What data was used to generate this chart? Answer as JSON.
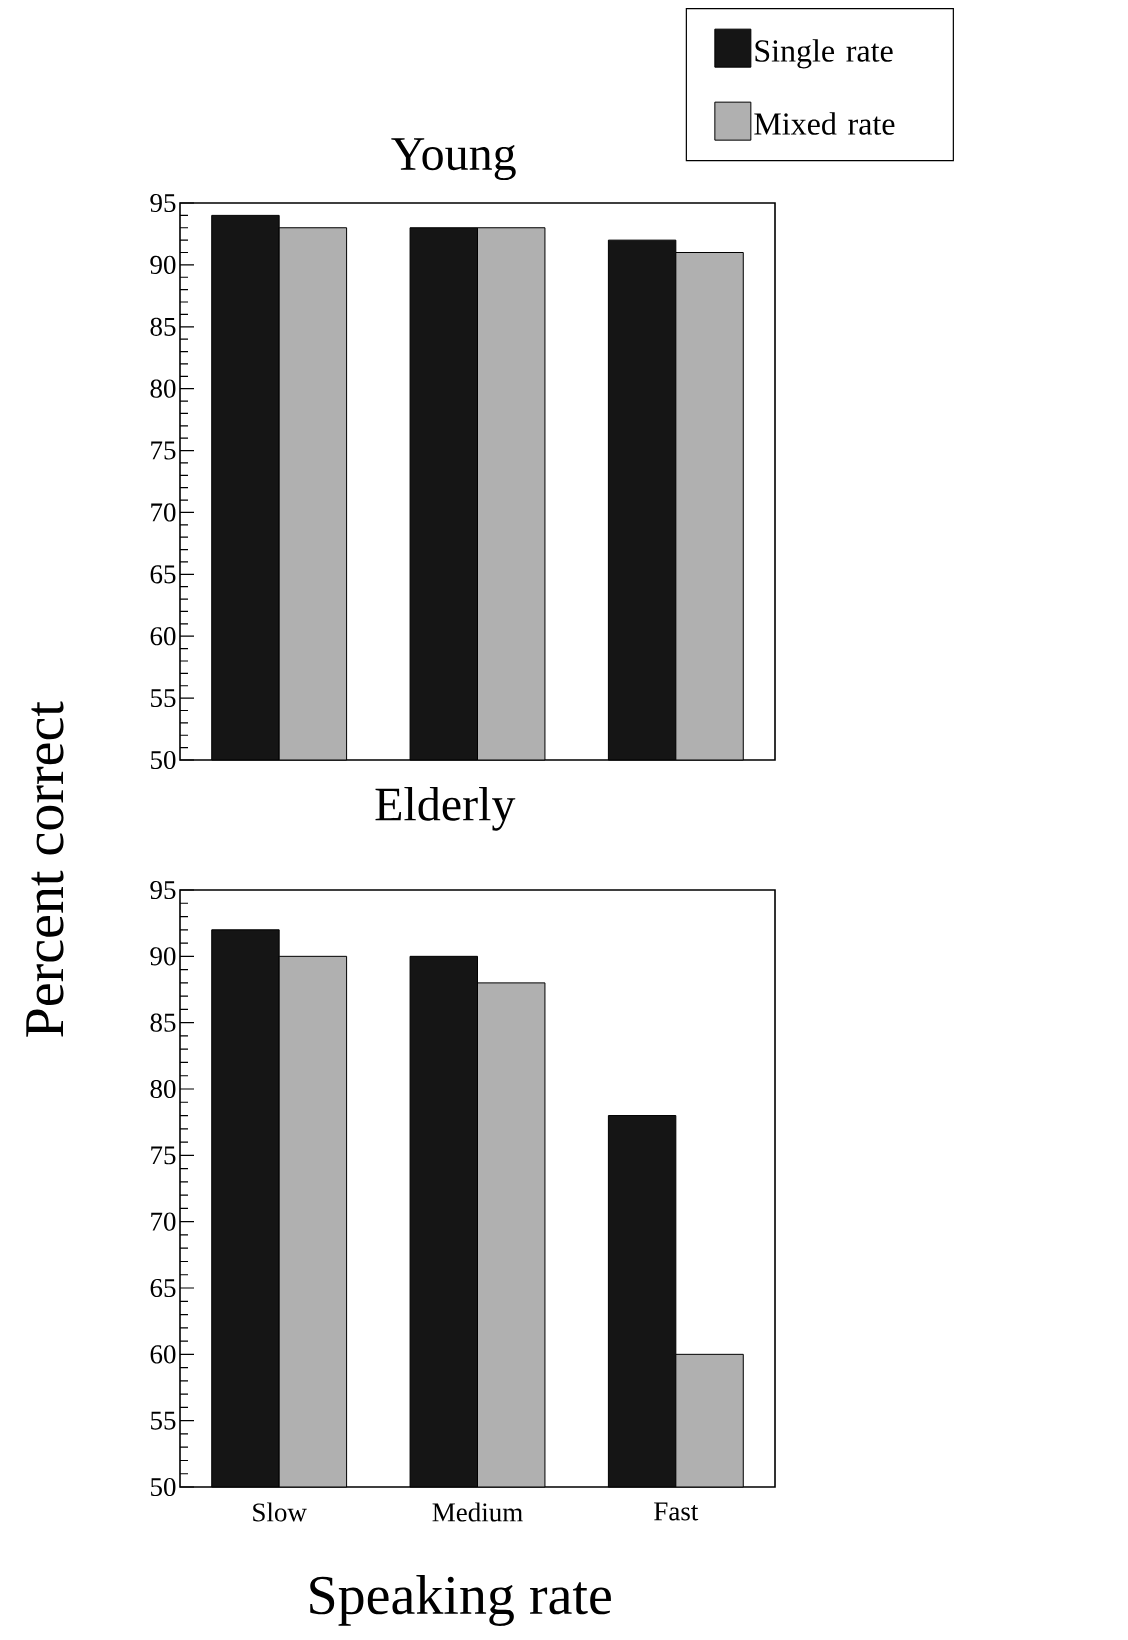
{
  "chart_data": [
    {
      "type": "bar",
      "title": "Young",
      "ylabel": "Percent correct",
      "categories": [
        null,
        null,
        null
      ],
      "series": [
        {
          "name": "Single rate",
          "color": "#151515",
          "values": [
            94,
            93,
            92
          ]
        },
        {
          "name": "Mixed rate",
          "color": "#b0b0b0",
          "values": [
            93,
            93,
            91
          ]
        }
      ],
      "ylim": [
        50,
        95
      ],
      "yticks": [
        50,
        55,
        60,
        65,
        70,
        75,
        80,
        85,
        90,
        95
      ],
      "legend": "top right",
      "tick_labels": "y"
    },
    {
      "type": "bar",
      "title": "Elderly",
      "xlabel": "Speaking rate",
      "categories": [
        "Slow",
        "Medium",
        "Fast"
      ],
      "series": [
        {
          "color": "#151515",
          "values": [
            92,
            90,
            78
          ]
        },
        {
          "color": "#b0b0b0",
          "values": [
            90,
            88,
            60
          ]
        }
      ],
      "ylim": [
        50,
        95
      ],
      "yticks": [
        50,
        55,
        60,
        65,
        70,
        75,
        80,
        85,
        90,
        95
      ]
    }
  ]
}
